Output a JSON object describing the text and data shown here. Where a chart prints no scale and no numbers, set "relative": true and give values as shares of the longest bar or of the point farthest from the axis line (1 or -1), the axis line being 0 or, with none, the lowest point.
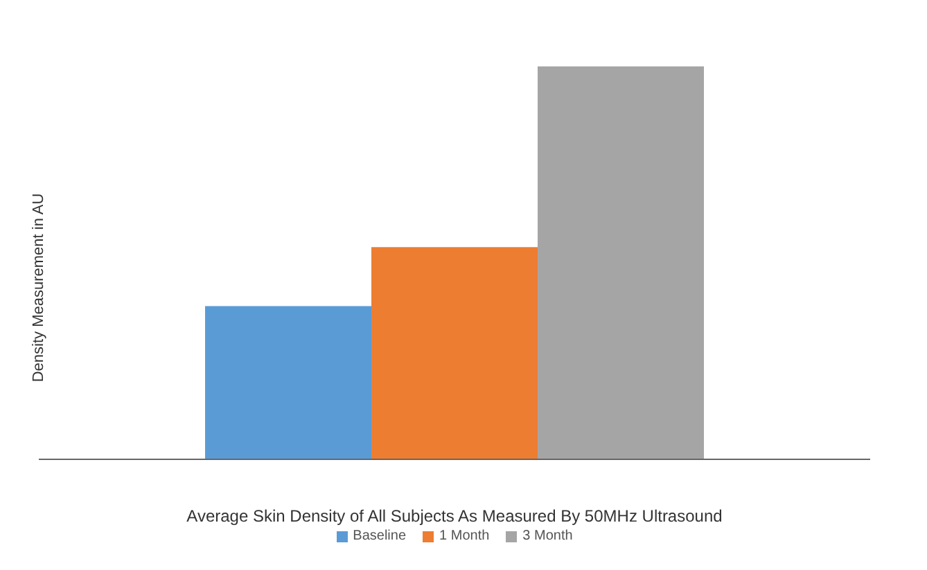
{
  "chart_data": {
    "type": "bar",
    "relative": true,
    "xlabel": "Average Skin Density of All Subjects  As Measured By 50MHz Ultrasound",
    "ylabel": "Density Measurement in AU",
    "categories": [
      null
    ],
    "legend": "bottom",
    "series": [
      {
        "name": "Baseline",
        "color": "#5b9bd5",
        "values": [
          0.39
        ]
      },
      {
        "name": "1 Month",
        "color": "#ed7d31",
        "values": [
          0.54
        ]
      },
      {
        "name": "3 Month",
        "color": "#a5a5a5",
        "values": [
          1
        ]
      }
    ]
  }
}
